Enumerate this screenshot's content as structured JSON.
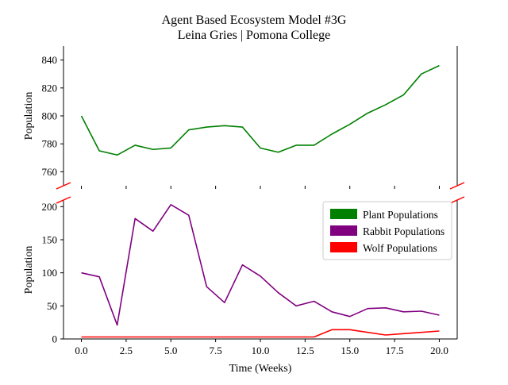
{
  "title_line1": "Agent Based Ecosystem Model #3G",
  "title_line2": "Leina Gries | Pomona College",
  "chart_data": [
    {
      "type": "line",
      "panel": "top",
      "ylabel": "Population",
      "ylim": [
        750,
        850
      ],
      "yticks": [
        760,
        780,
        800,
        820,
        840
      ],
      "xlim": [
        -1,
        21
      ],
      "xticks": [
        0.0,
        2.5,
        5.0,
        7.5,
        10.0,
        12.5,
        15.0,
        17.5,
        20.0
      ],
      "x": [
        0,
        1,
        2,
        3,
        4,
        5,
        6,
        7,
        8,
        9,
        10,
        11,
        12,
        13,
        14,
        15,
        16,
        17,
        18,
        19,
        20
      ],
      "series": [
        {
          "name": "Plant Populations",
          "color": "#008000",
          "values": [
            800,
            775,
            772,
            779,
            776,
            777,
            790,
            792,
            793,
            792,
            777,
            774,
            779,
            779,
            787,
            794,
            802,
            808,
            815,
            830,
            836
          ]
        }
      ]
    },
    {
      "type": "line",
      "panel": "bottom",
      "xlabel": "Time (Weeks)",
      "ylabel": "Population",
      "ylim": [
        0,
        210
      ],
      "yticks": [
        0,
        50,
        100,
        150,
        200
      ],
      "xlim": [
        -1,
        21
      ],
      "xticks": [
        0.0,
        2.5,
        5.0,
        7.5,
        10.0,
        12.5,
        15.0,
        17.5,
        20.0
      ],
      "x": [
        0,
        1,
        2,
        3,
        4,
        5,
        6,
        7,
        8,
        9,
        10,
        11,
        12,
        13,
        14,
        15,
        16,
        17,
        18,
        19,
        20
      ],
      "series": [
        {
          "name": "Rabbit Populations",
          "color": "#800080",
          "values": [
            100,
            94,
            21,
            182,
            163,
            203,
            187,
            79,
            55,
            112,
            95,
            70,
            50,
            57,
            41,
            34,
            46,
            47,
            41,
            42,
            36
          ]
        },
        {
          "name": "Wolf Populations",
          "color": "#ff0000",
          "values": [
            3,
            3,
            3,
            3,
            3,
            3,
            3,
            3,
            3,
            3,
            3,
            3,
            3,
            3,
            14,
            14,
            10,
            6,
            8,
            10,
            12
          ]
        }
      ],
      "legend_position": "upper-right"
    }
  ],
  "legend": [
    {
      "label": "Plant Populations",
      "color": "#008000"
    },
    {
      "label": "Rabbit Populations",
      "color": "#800080"
    },
    {
      "label": "Wolf Populations",
      "color": "#ff0000"
    }
  ]
}
